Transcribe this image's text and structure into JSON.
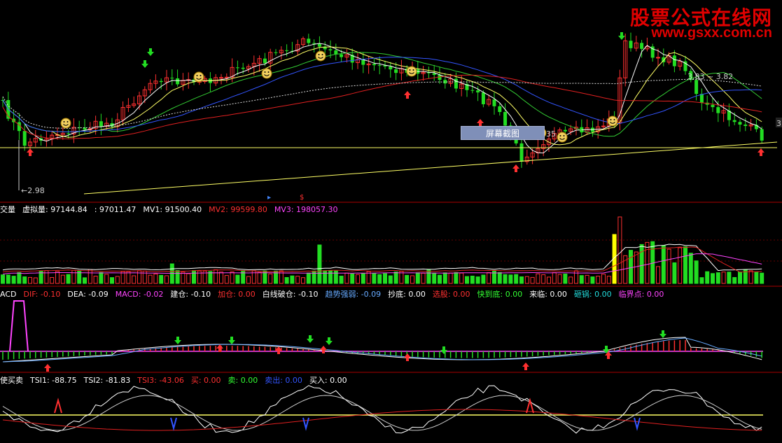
{
  "watermark": {
    "line1": "股票公式在线网",
    "line2": "www.gsxx.com.cn"
  },
  "screenshot_button": "屏幕截图",
  "colors": {
    "up": "#ff3030",
    "down": "#22dd22",
    "white": "#ffffff",
    "yellow": "#ffff66",
    "magenta": "#ff44ff",
    "blue": "#3355ff",
    "red": "#e02020",
    "green": "#33ff33",
    "lightblue": "#66aaff",
    "cyan": "#22dddd"
  },
  "chart_data": [
    {
      "type": "candlestick",
      "panel": "price",
      "annotations": {
        "low_label": "2.98",
        "high_label": "3.83",
        "right_label": "3.82",
        "mid_label": "35",
        "right_edge_label": "3"
      },
      "signals": {
        "arrows_up": 10,
        "arrows_down": 3,
        "smiley_count": 10
      }
    },
    {
      "type": "bar",
      "panel": "volume",
      "title_items": [
        {
          "text": "交量",
          "color": "#ffffff"
        },
        {
          "text": "虚拟量: 97144.84",
          "color": "#ffffff"
        },
        {
          "text": ": 97011.47",
          "color": "#ffffff"
        },
        {
          "text": "MV1: 91500.40",
          "color": "#ffffff"
        },
        {
          "text": "MV2: 99599.80",
          "color": "#ff3030"
        },
        {
          "text": "MV3: 198057.30",
          "color": "#ff44ff"
        }
      ]
    },
    {
      "type": "bar",
      "panel": "macd",
      "title_items": [
        {
          "text": "ACD",
          "color": "#ffffff"
        },
        {
          "text": "DIF: -0.10",
          "color": "#ff3030"
        },
        {
          "text": "DEA: -0.09",
          "color": "#ffffff"
        },
        {
          "text": "MACD: -0.02",
          "color": "#ff44ff"
        },
        {
          "text": "建仓: -0.10",
          "color": "#ffffff"
        },
        {
          "text": "加仓: 0.00",
          "color": "#ff3030"
        },
        {
          "text": "白线破仓: -0.10",
          "color": "#ffffff"
        },
        {
          "text": "趋势强弱: -0.09",
          "color": "#66aaff"
        },
        {
          "text": "抄底: 0.00",
          "color": "#ffffff"
        },
        {
          "text": "选股: 0.00",
          "color": "#ff3030"
        },
        {
          "text": "快到底: 0.00",
          "color": "#33ff33"
        },
        {
          "text": "来临: 0.00",
          "color": "#ffffff"
        },
        {
          "text": "砸锅: 0.00",
          "color": "#22dddd"
        },
        {
          "text": "临界点: 0.00",
          "color": "#ff44ff"
        }
      ]
    },
    {
      "type": "line",
      "panel": "tsi",
      "title_items": [
        {
          "text": "使买卖",
          "color": "#ffffff"
        },
        {
          "text": "TSI1: -88.75",
          "color": "#ffffff"
        },
        {
          "text": "TSI2: -81.83",
          "color": "#ffffff"
        },
        {
          "text": "TSI3: -43.06",
          "color": "#ff3030"
        },
        {
          "text": "买: 0.00",
          "color": "#ff3030"
        },
        {
          "text": "卖: 0.00",
          "color": "#33ff33"
        },
        {
          "text": "卖出: 0.00",
          "color": "#3355ff"
        },
        {
          "text": "买入: 0.00",
          "color": "#ffffff"
        }
      ]
    }
  ]
}
